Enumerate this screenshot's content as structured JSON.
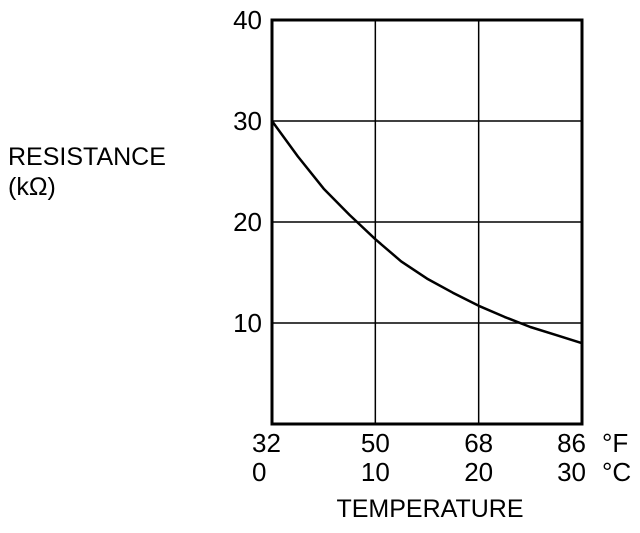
{
  "chart_data": {
    "type": "line",
    "title": "",
    "ylabel_lines": [
      "RESISTANCE",
      "(kΩ)"
    ],
    "xlabel": "TEMPERATURE",
    "x_unit_primary": "°F",
    "x_unit_secondary": "°C",
    "x_ticks_primary": [
      "32",
      "50",
      "68",
      "86"
    ],
    "x_ticks_secondary": [
      "0",
      "10",
      "20",
      "30"
    ],
    "x_tick_values_celsius": [
      0,
      10,
      20,
      30
    ],
    "y_ticks": [
      "10",
      "20",
      "30",
      "40"
    ],
    "y_tick_values": [
      10,
      20,
      30,
      40
    ],
    "xlim_celsius": [
      0,
      30
    ],
    "ylim": [
      0,
      40
    ],
    "grid": true,
    "series": [
      {
        "x_celsius": [
          0,
          2.5,
          5,
          7.5,
          10,
          12.5,
          15,
          17.5,
          20,
          22.5,
          25,
          27.5,
          30
        ],
        "values": [
          30,
          26.5,
          23.3,
          20.7,
          18.3,
          16.1,
          14.4,
          13.0,
          11.7,
          10.6,
          9.6,
          8.8,
          8.0
        ]
      }
    ]
  }
}
